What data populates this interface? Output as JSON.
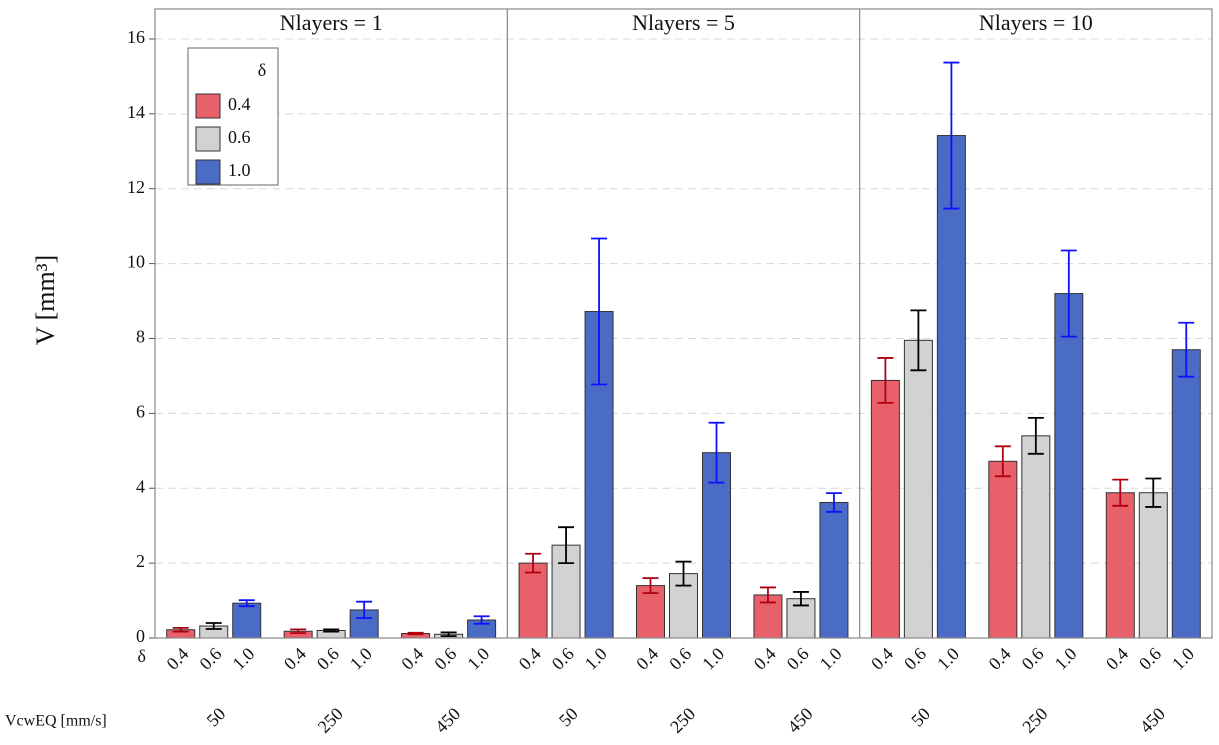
{
  "chart_data": {
    "type": "bar",
    "ylabel": "V [mm³]",
    "ylim": [
      0,
      16.8
    ],
    "yticks": [
      0,
      2,
      4,
      6,
      8,
      10,
      12,
      14,
      16
    ],
    "grid": true,
    "legend_title": "δ",
    "legend_loc": "upper left",
    "bar_axis_label": "δ",
    "category_axis_label": "VcwEQ [mm/s]",
    "series": [
      {
        "name": "0.4",
        "color": "#e8606a",
        "error_color": "#b00010"
      },
      {
        "name": "0.6",
        "color": "#d2d2d2",
        "error_color": "#000000"
      },
      {
        "name": "1.0",
        "color": "#4a6cc4",
        "error_color": "#1010ff"
      }
    ],
    "panels": [
      {
        "title": "Nlayers = 1",
        "categories": [
          "50",
          "250",
          "450"
        ],
        "series": [
          {
            "values": [
              0.22,
              0.18,
              0.12
            ],
            "errors": [
              0.05,
              0.05,
              0.02
            ]
          },
          {
            "values": [
              0.32,
              0.2,
              0.1
            ],
            "errors": [
              0.08,
              0.03,
              0.05
            ]
          },
          {
            "values": [
              0.93,
              0.75,
              0.48
            ],
            "errors": [
              0.08,
              0.22,
              0.1
            ]
          }
        ]
      },
      {
        "title": "Nlayers = 5",
        "categories": [
          "50",
          "250",
          "450"
        ],
        "series": [
          {
            "values": [
              2.0,
              1.4,
              1.15
            ],
            "errors": [
              0.25,
              0.2,
              0.2
            ]
          },
          {
            "values": [
              2.48,
              1.72,
              1.05
            ],
            "errors": [
              0.48,
              0.32,
              0.18
            ]
          },
          {
            "values": [
              8.72,
              4.95,
              3.62
            ],
            "errors": [
              1.95,
              0.8,
              0.25
            ]
          }
        ]
      },
      {
        "title": "Nlayers = 10",
        "categories": [
          "50",
          "250",
          "450"
        ],
        "series": [
          {
            "values": [
              6.88,
              4.72,
              3.88
            ],
            "errors": [
              0.6,
              0.4,
              0.35
            ]
          },
          {
            "values": [
              7.95,
              5.4,
              3.88
            ],
            "errors": [
              0.8,
              0.48,
              0.38
            ]
          },
          {
            "values": [
              13.42,
              9.2,
              7.7
            ],
            "errors": [
              1.95,
              1.15,
              0.72
            ]
          }
        ]
      }
    ]
  }
}
